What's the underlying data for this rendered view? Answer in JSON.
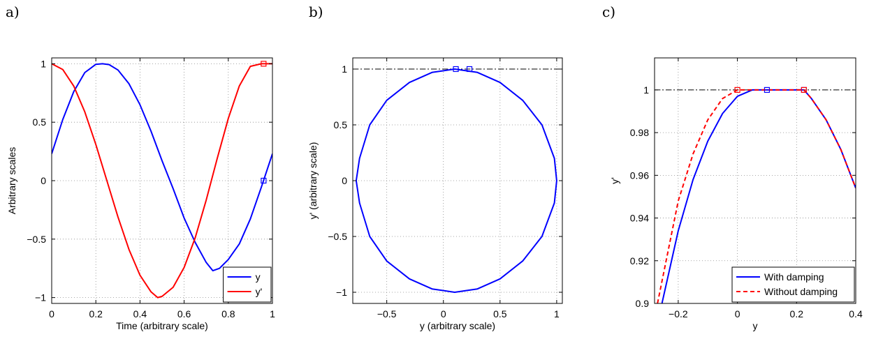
{
  "figure": {
    "panel_labels": [
      "a)",
      "b)",
      "c)"
    ]
  },
  "chart_data": [
    {
      "type": "line",
      "panel": "a)",
      "xlabel": "Time (arbitrary scale)",
      "ylabel": "Arbitrary scales",
      "xlim": [
        0,
        1
      ],
      "ylim": [
        -1.05,
        1.05
      ],
      "xticks": [
        0,
        0.2,
        0.4,
        0.6,
        0.8,
        1
      ],
      "xtick_labels": [
        "0",
        "0.2",
        "0.4",
        "0.6",
        "0.8",
        "1"
      ],
      "yticks": [
        -1,
        -0.5,
        0,
        0.5,
        1
      ],
      "ytick_labels": [
        "−1",
        "−0.5",
        "0",
        "0.5",
        "1"
      ],
      "grid": true,
      "legend_position": "bottom-right",
      "series": [
        {
          "name": "y",
          "color": "#0000ff",
          "dash": "solid",
          "x": [
            0,
            0.05,
            0.1,
            0.15,
            0.2,
            0.23,
            0.26,
            0.3,
            0.35,
            0.4,
            0.45,
            0.5,
            0.55,
            0.6,
            0.65,
            0.7,
            0.73,
            0.76,
            0.8,
            0.85,
            0.9,
            0.95,
            1.0
          ],
          "y": [
            0.23,
            0.522,
            0.762,
            0.925,
            0.995,
            1.0,
            0.993,
            0.947,
            0.829,
            0.649,
            0.423,
            0.17,
            -0.068,
            -0.32,
            -0.528,
            -0.7,
            -0.77,
            -0.75,
            -0.675,
            -0.541,
            -0.327,
            -0.054,
            0.23
          ]
        },
        {
          "name": "y'",
          "color": "#ff0000",
          "dash": "solid",
          "x": [
            0,
            0.05,
            0.1,
            0.15,
            0.2,
            0.25,
            0.3,
            0.35,
            0.4,
            0.45,
            0.48,
            0.5,
            0.55,
            0.6,
            0.65,
            0.7,
            0.75,
            0.8,
            0.85,
            0.9,
            0.95,
            0.966,
            0.98,
            1.0
          ],
          "y": [
            1.0,
            0.951,
            0.809,
            0.588,
            0.309,
            0.0,
            -0.309,
            -0.588,
            -0.809,
            -0.951,
            -1.0,
            -0.99,
            -0.912,
            -0.742,
            -0.489,
            -0.166,
            0.191,
            0.532,
            0.81,
            0.978,
            1.0,
            1.0,
            1.0,
            1.0
          ]
        }
      ],
      "markers": [
        {
          "x": 0.96,
          "y": 0.0,
          "color": "#0000ff"
        },
        {
          "x": 0.96,
          "y": 1.0,
          "color": "#ff0000"
        }
      ]
    },
    {
      "type": "line",
      "panel": "b)",
      "xlabel": "y (arbitrary scale)",
      "ylabel": "y' (arbitrary scale)",
      "xlim": [
        -0.8,
        1.05
      ],
      "ylim": [
        -1.1,
        1.1
      ],
      "xticks": [
        -0.5,
        0,
        0.5,
        1
      ],
      "xtick_labels": [
        "−0.5",
        "0",
        "0.5",
        "1"
      ],
      "yticks": [
        -1,
        -0.5,
        0,
        0.5,
        1
      ],
      "ytick_labels": [
        "−1",
        "−0.5",
        "0",
        "0.5",
        "1"
      ],
      "grid": true,
      "reference_line_y": 1,
      "series": [
        {
          "name": "",
          "color": "#0000ff",
          "dash": "solid",
          "x": [
            0.1,
            0.3,
            0.5,
            0.7,
            0.87,
            0.98,
            1.0,
            0.98,
            0.87,
            0.7,
            0.5,
            0.3,
            0.1,
            -0.1,
            -0.3,
            -0.5,
            -0.65,
            -0.74,
            -0.77,
            -0.74,
            -0.65,
            -0.5,
            -0.3,
            -0.1,
            0.1
          ],
          "y": [
            1.0,
            0.97,
            0.88,
            0.72,
            0.5,
            0.2,
            0.0,
            -0.2,
            -0.5,
            -0.72,
            -0.88,
            -0.97,
            -1.0,
            -0.97,
            -0.88,
            -0.72,
            -0.5,
            -0.2,
            0.0,
            0.2,
            0.5,
            0.72,
            0.88,
            0.97,
            1.0
          ]
        }
      ],
      "markers": [
        {
          "x": 0.11,
          "y": 1.0,
          "color": "#0000ff"
        },
        {
          "x": 0.23,
          "y": 1.0,
          "color": "#0000ff"
        }
      ]
    },
    {
      "type": "line",
      "panel": "c)",
      "xlabel": "y",
      "ylabel": "y'",
      "xlim": [
        -0.28,
        0.4
      ],
      "ylim": [
        0.9,
        1.015
      ],
      "xticks": [
        -0.2,
        0,
        0.2,
        0.4
      ],
      "xtick_labels": [
        "−0.2",
        "0",
        "0.2",
        "0.4"
      ],
      "yticks": [
        0.9,
        0.92,
        0.94,
        0.96,
        0.98,
        1
      ],
      "ytick_labels": [
        "0.9",
        "0.92",
        "0.94",
        "0.96",
        "0.98",
        "1"
      ],
      "grid": true,
      "reference_line_y": 1,
      "legend_position": "bottom-right",
      "series": [
        {
          "name": "With damping",
          "color": "#0000ff",
          "dash": "solid",
          "x": [
            -0.255,
            -0.2,
            -0.15,
            -0.1,
            -0.05,
            0.0,
            0.05,
            0.1,
            0.225,
            0.25,
            0.3,
            0.35,
            0.4
          ],
          "y": [
            0.9,
            0.934,
            0.958,
            0.976,
            0.989,
            0.997,
            1.0,
            1.0,
            1.0,
            0.996,
            0.986,
            0.972,
            0.954
          ]
        },
        {
          "name": "Without damping",
          "color": "#ff0000",
          "dash": "dashed",
          "x": [
            -0.27,
            -0.2,
            -0.15,
            -0.1,
            -0.05,
            0.0,
            0.225,
            0.25,
            0.3,
            0.35,
            0.4
          ],
          "y": [
            0.9,
            0.948,
            0.97,
            0.986,
            0.996,
            1.0,
            1.0,
            0.996,
            0.986,
            0.972,
            0.954
          ]
        }
      ],
      "markers": [
        {
          "x": 0.0,
          "y": 1.0,
          "color": "#ff0000"
        },
        {
          "x": 0.1,
          "y": 1.0,
          "color": "#0000ff"
        },
        {
          "x": 0.225,
          "y": 1.0,
          "color": "#0000ff"
        },
        {
          "x": 0.225,
          "y": 1.0,
          "color": "#ff0000"
        }
      ]
    }
  ]
}
